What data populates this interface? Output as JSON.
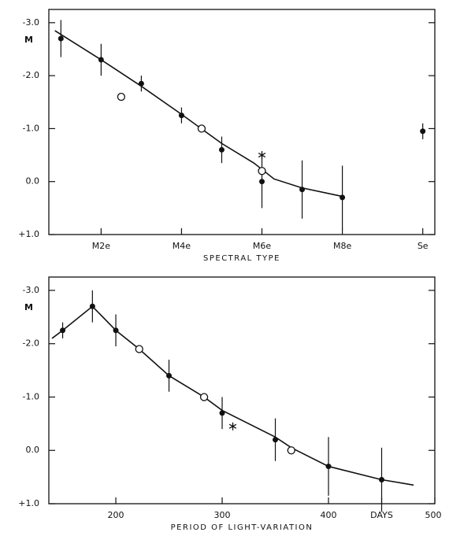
{
  "chart_data": [
    {
      "type": "scatter",
      "x_label": "SPECTRAL TYPE",
      "y_label": "M",
      "y_inverted": true,
      "color": "#111111",
      "xlim": [
        0.7,
        10.3
      ],
      "ylim": [
        -3.25,
        1.0
      ],
      "xticks": [
        {
          "value": 2,
          "label": "M2e"
        },
        {
          "value": 4,
          "label": "M4e"
        },
        {
          "value": 6,
          "label": "M6e"
        },
        {
          "value": 8,
          "label": "M8e"
        },
        {
          "value": 10,
          "label": "Se"
        }
      ],
      "yticks": [
        {
          "value": -3,
          "label": "-3.0"
        },
        {
          "value": -2,
          "label": "-2.0"
        },
        {
          "value": -1,
          "label": "-1.0"
        },
        {
          "value": 0,
          "label": "0.0"
        },
        {
          "value": 1,
          "label": "+1.0"
        }
      ],
      "series": [
        {
          "style": "line",
          "x": [
            0.85,
            2,
            3,
            4,
            5,
            5.8,
            6.3,
            7,
            8
          ],
          "values": [
            -2.85,
            -2.3,
            -1.8,
            -1.27,
            -0.72,
            -0.35,
            -0.05,
            0.12,
            0.28
          ]
        },
        {
          "style": "filled",
          "x": [
            1,
            2,
            3,
            4,
            5,
            6,
            7,
            8,
            10
          ],
          "values": [
            -2.7,
            -2.3,
            -1.85,
            -1.25,
            -0.6,
            0.0,
            0.15,
            0.3,
            -0.95
          ],
          "errors": [
            0.35,
            0.3,
            0.15,
            0.15,
            0.25,
            0.5,
            0.55,
            0.6,
            0.15
          ]
        },
        {
          "style": "open",
          "x": [
            2.5,
            4.5,
            6
          ],
          "values": [
            -1.6,
            -1.0,
            -0.2
          ]
        },
        {
          "style": "star",
          "x": [
            6
          ],
          "values": [
            -0.5
          ]
        }
      ]
    },
    {
      "type": "scatter",
      "x_label": "PERIOD OF LIGHT-VARIATION",
      "y_label": "M",
      "y_inverted": true,
      "color": "#111111",
      "xlim": [
        137,
        500
      ],
      "ylim": [
        -3.25,
        1.0
      ],
      "xticks": [
        200,
        300,
        400,
        {
          "value": 450,
          "label": "DAYS"
        },
        500
      ],
      "yticks": [
        {
          "value": -3,
          "label": "-3.0"
        },
        {
          "value": -2,
          "label": "-2.0"
        },
        {
          "value": -1,
          "label": "-1.0"
        },
        {
          "value": 0,
          "label": "0.0"
        },
        {
          "value": 1,
          "label": "+1.0"
        }
      ],
      "series": [
        {
          "style": "line",
          "x": [
            140,
            150,
            178,
            200,
            222,
            250,
            283,
            300,
            350,
            365,
            400,
            450,
            480
          ],
          "values": [
            -2.1,
            -2.25,
            -2.7,
            -2.25,
            -1.9,
            -1.4,
            -1.0,
            -0.75,
            -0.25,
            -0.05,
            0.3,
            0.55,
            0.65
          ]
        },
        {
          "style": "filled",
          "x": [
            150,
            178,
            200,
            250,
            300,
            350,
            400,
            450
          ],
          "values": [
            -2.25,
            -2.7,
            -2.25,
            -1.4,
            -0.7,
            -0.2,
            0.3,
            0.55
          ],
          "errors": [
            0.15,
            0.3,
            0.3,
            0.3,
            0.3,
            0.4,
            0.55,
            0.6
          ]
        },
        {
          "style": "open",
          "x": [
            222,
            283,
            365
          ],
          "values": [
            -1.9,
            -1.0,
            0.0
          ]
        },
        {
          "style": "star",
          "x": [
            310
          ],
          "values": [
            -0.45
          ]
        }
      ]
    }
  ]
}
